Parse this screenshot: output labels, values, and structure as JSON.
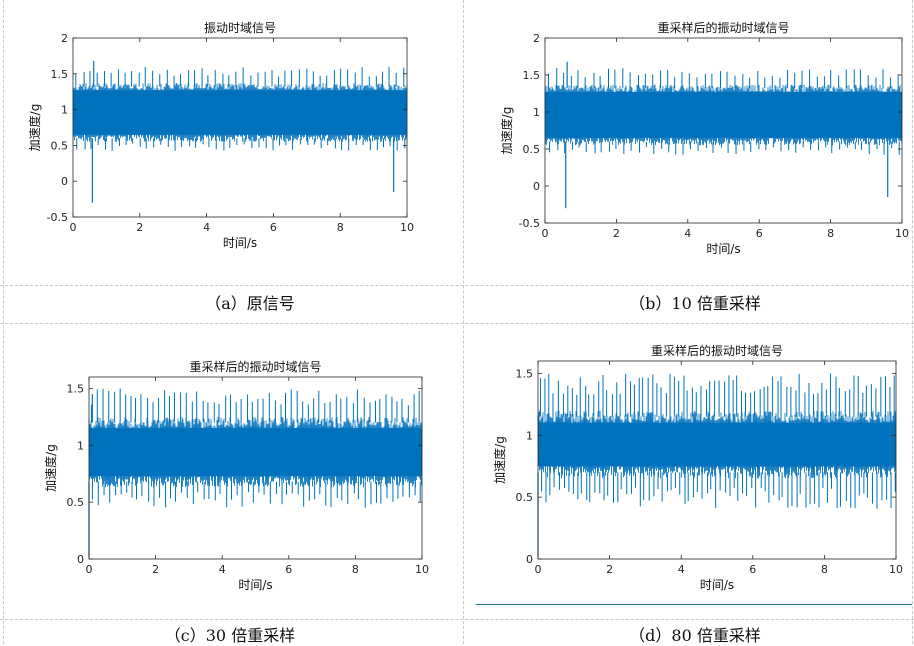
{
  "colors": {
    "signal": "#0072BD",
    "axis": "#262626"
  },
  "panels": [
    {
      "caption": "（a）原信号",
      "chart_data": {
        "type": "line",
        "title": "振动时域信号",
        "xlabel": "时间/s",
        "ylabel": "加速度/g",
        "xlim": [
          0,
          10
        ],
        "ylim": [
          -0.5,
          2
        ],
        "xticks": [
          "0",
          "2",
          "4",
          "6",
          "8",
          "10"
        ],
        "yticks": [
          "-0.5",
          "0",
          "0.5",
          "1",
          "1.5",
          "2"
        ],
        "grid": false,
        "signal": {
          "mean": 0.9,
          "band": [
            0.6,
            1.32
          ],
          "peaks_high": 1.6,
          "peaks_low": 0.42,
          "outliers": [
            [
              0.58,
              -0.3
            ],
            [
              9.6,
              -0.15
            ],
            [
              0.62,
              1.68
            ]
          ],
          "impulses": 48
        }
      }
    },
    {
      "caption": "（b）10 倍重采样",
      "chart_data": {
        "type": "line",
        "title": "重采样后的振动时域信号",
        "xlabel": "时间/s",
        "ylabel": "加速度/g",
        "xlim": [
          0,
          10
        ],
        "ylim": [
          -0.5,
          2
        ],
        "xticks": [
          "0",
          "2",
          "4",
          "6",
          "8",
          "10"
        ],
        "yticks": [
          "-0.5",
          "0",
          "0.5",
          "1",
          "1.5",
          "2"
        ],
        "grid": false,
        "signal": {
          "mean": 0.9,
          "band": [
            0.6,
            1.32
          ],
          "peaks_high": 1.6,
          "peaks_low": 0.42,
          "outliers": [
            [
              0.58,
              -0.3
            ],
            [
              9.6,
              -0.15
            ],
            [
              0.62,
              1.68
            ]
          ],
          "impulses": 48
        }
      }
    },
    {
      "caption": "（c）30 倍重采样",
      "chart_data": {
        "type": "line",
        "title": "重采样后的振动时域信号",
        "xlabel": "时间/s",
        "ylabel": "加速度/g",
        "xlim": [
          0,
          10
        ],
        "ylim": [
          0,
          1.6
        ],
        "xticks": [
          "0",
          "2",
          "4",
          "6",
          "8",
          "10"
        ],
        "yticks": [
          "0",
          "0.5",
          "1",
          "1.5"
        ],
        "grid": false,
        "signal": {
          "mean": 0.92,
          "band": [
            0.68,
            1.2
          ],
          "peaks_high": 1.5,
          "peaks_low": 0.45,
          "outliers": [
            [
              0.0,
              0.02
            ],
            [
              0.1,
              1.45
            ]
          ],
          "impulses": 60
        }
      }
    },
    {
      "caption": "（d）80 倍重采样",
      "chart_data": {
        "type": "line",
        "title": "重采样后的振动时域信号",
        "xlabel": "时间/s",
        "ylabel": "加速度/g",
        "xlim": [
          0,
          10
        ],
        "ylim": [
          0,
          1.6
        ],
        "xticks": [
          "0",
          "2",
          "4",
          "6",
          "8",
          "10"
        ],
        "yticks": [
          "0",
          "0.5",
          "1",
          "1.5"
        ],
        "grid": false,
        "signal": {
          "mean": 0.92,
          "band": [
            0.7,
            1.15
          ],
          "peaks_high": 1.5,
          "peaks_low": 0.4,
          "outliers": [
            [
              0.0,
              0.02
            ],
            [
              0.05,
              1.2
            ]
          ],
          "impulses": 80
        }
      }
    }
  ]
}
